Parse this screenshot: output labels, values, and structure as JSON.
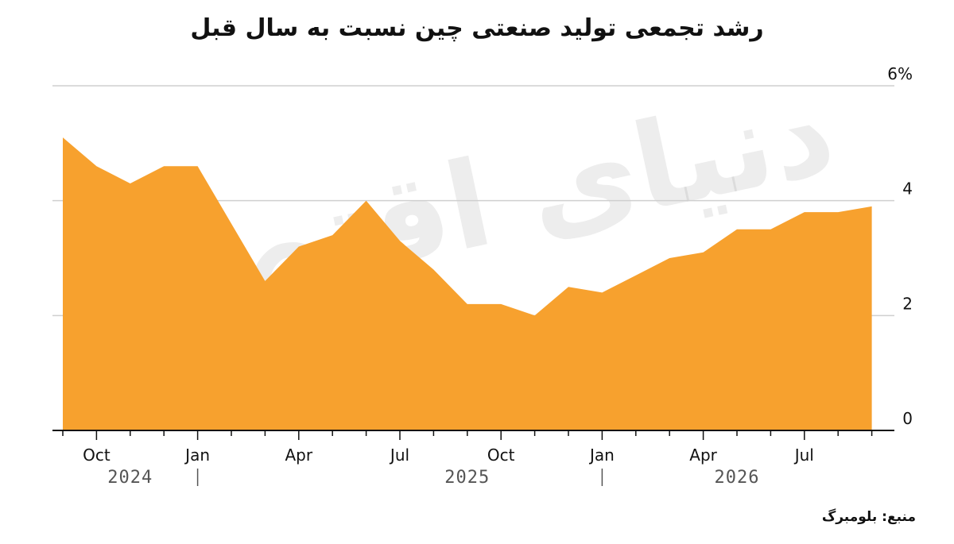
{
  "title": "رشد تجمعی تولید صنعتی چین نسبت به سال قبل",
  "source": "منبع: بلومبرگ",
  "watermark": "دنیای اقتصاد",
  "chart_data": {
    "type": "area",
    "color": "#F7A12E",
    "ylim": [
      0,
      6
    ],
    "yticks": [
      "0",
      "2",
      "4",
      "6%"
    ],
    "ytick_values": [
      0,
      2,
      4,
      6
    ],
    "x": [
      "2024-09",
      "2024-10",
      "2024-11",
      "2024-12",
      "2025-01",
      "2025-02",
      "2025-03",
      "2025-04",
      "2025-05",
      "2025-06",
      "2025-07",
      "2025-08",
      "2025-09",
      "2025-10",
      "2025-11",
      "2025-12",
      "2026-01",
      "2026-02",
      "2026-03",
      "2026-04",
      "2026-05",
      "2026-06",
      "2026-07",
      "2026-08",
      "2026-09"
    ],
    "values": [
      5.1,
      4.6,
      4.3,
      4.6,
      4.6,
      3.6,
      2.6,
      3.2,
      3.4,
      4.0,
      3.3,
      2.8,
      2.2,
      2.2,
      2.0,
      2.5,
      2.4,
      2.7,
      3.0,
      3.1,
      3.5,
      3.5,
      3.8,
      3.8,
      3.9
    ],
    "x_tick_labels": [
      "Oct",
      "Jan",
      "Apr",
      "Jul",
      "Oct",
      "Jan",
      "Apr",
      "Jul"
    ],
    "x_tick_values": [
      "2024-10",
      "2025-01",
      "2025-04",
      "2025-07",
      "2025-10",
      "2026-01",
      "2026-04",
      "2026-07"
    ],
    "year_labels": [
      "2024",
      "2025",
      "2026"
    ],
    "year_label_values": [
      "2024-11",
      "2025-09",
      "2026-05"
    ],
    "year_separators": [
      "2025-01",
      "2026-01"
    ],
    "grid": true
  }
}
